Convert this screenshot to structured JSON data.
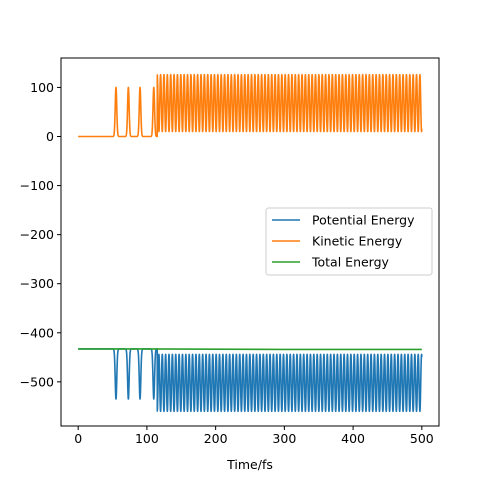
{
  "chart_data": {
    "type": "line",
    "title": "",
    "xlabel": "Time/fs",
    "ylabel": "",
    "xlim": [
      -25,
      525
    ],
    "ylim": [
      -590,
      160
    ],
    "x_ticks": [
      0,
      100,
      200,
      300,
      400,
      500
    ],
    "x_tick_labels": [
      "0",
      "100",
      "200",
      "300",
      "400",
      "500"
    ],
    "y_ticks": [
      100,
      0,
      -100,
      -200,
      -300,
      -400,
      -500
    ],
    "y_tick_labels": [
      "100",
      "0",
      "−100",
      "−200",
      "−300",
      "−400",
      "−500"
    ],
    "grid": false,
    "legend_position": "center-right",
    "series": [
      {
        "name": "Potential Energy",
        "color": "#1f77b4",
        "model": {
          "baseline": -433,
          "start_x": 50,
          "dense_start_x": 115,
          "end_x": 500,
          "early_min": -535,
          "early_max": -438,
          "dense_min": -560,
          "dense_max": -444,
          "early_peaks": [
            55,
            73,
            90,
            110
          ],
          "dense_period": 4.9
        }
      },
      {
        "name": "Kinetic Energy",
        "color": "#ff7f0e",
        "model": {
          "baseline": 0,
          "start_x": 50,
          "dense_start_x": 115,
          "end_x": 500,
          "early_min": 2,
          "early_max": 100,
          "dense_min": 10,
          "dense_max": 126,
          "early_peaks": [
            55,
            73,
            90,
            110
          ],
          "dense_period": 4.9
        }
      },
      {
        "name": "Total Energy",
        "color": "#2ca02c",
        "points": [
          [
            0,
            -433
          ],
          [
            100,
            -433
          ],
          [
            200,
            -433.5
          ],
          [
            300,
            -434
          ],
          [
            400,
            -434
          ],
          [
            500,
            -434
          ]
        ]
      }
    ]
  }
}
